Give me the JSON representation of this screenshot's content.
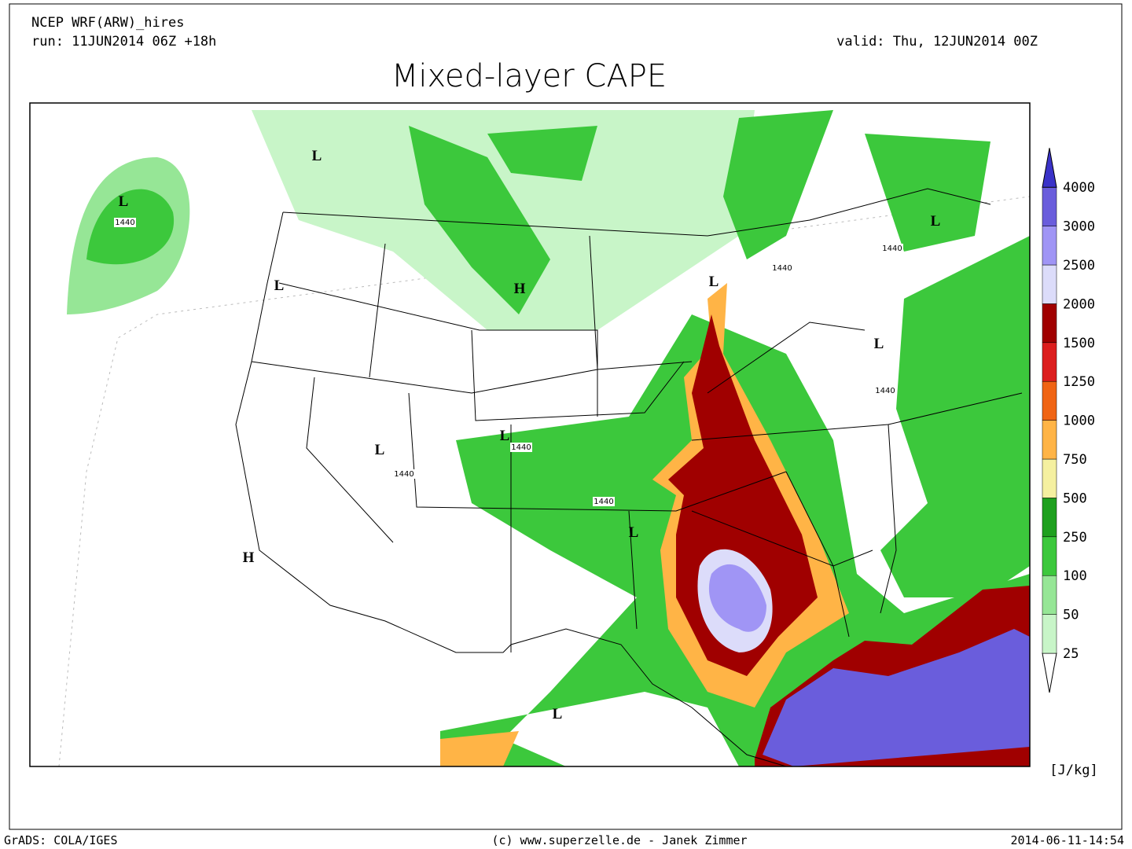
{
  "header": {
    "model": "NCEP WRF(ARW)_hires",
    "run": "run: 11JUN2014 06Z +18h",
    "valid": "valid: Thu, 12JUN2014 00Z",
    "title": "Mixed-layer CAPE"
  },
  "legend": {
    "levels": [
      25,
      50,
      100,
      250,
      500,
      750,
      1000,
      1250,
      1500,
      2000,
      2500,
      3000,
      4000
    ],
    "colors": [
      "#ffffff",
      "#c8f5c8",
      "#96e696",
      "#3cc83c",
      "#1ea01e",
      "#f5f0a0",
      "#ffb446",
      "#f06414",
      "#dc1e1e",
      "#a00000",
      "#dcdcfa",
      "#a095f5",
      "#6a5ddc",
      "#3a32c8"
    ],
    "unit": "[J/kg]"
  },
  "map_labels": [
    "L",
    "1440",
    "L",
    "L",
    "H",
    "L",
    "1440",
    "1440",
    "L",
    "L",
    "1440",
    "L",
    "1440",
    "L",
    "1440",
    "1440",
    "L",
    "H",
    "L"
  ],
  "footer": {
    "left": "GrADS: COLA/IGES",
    "center": "(c) www.superzelle.de - Janek Zimmer",
    "right": "2014-06-11-14:54"
  }
}
